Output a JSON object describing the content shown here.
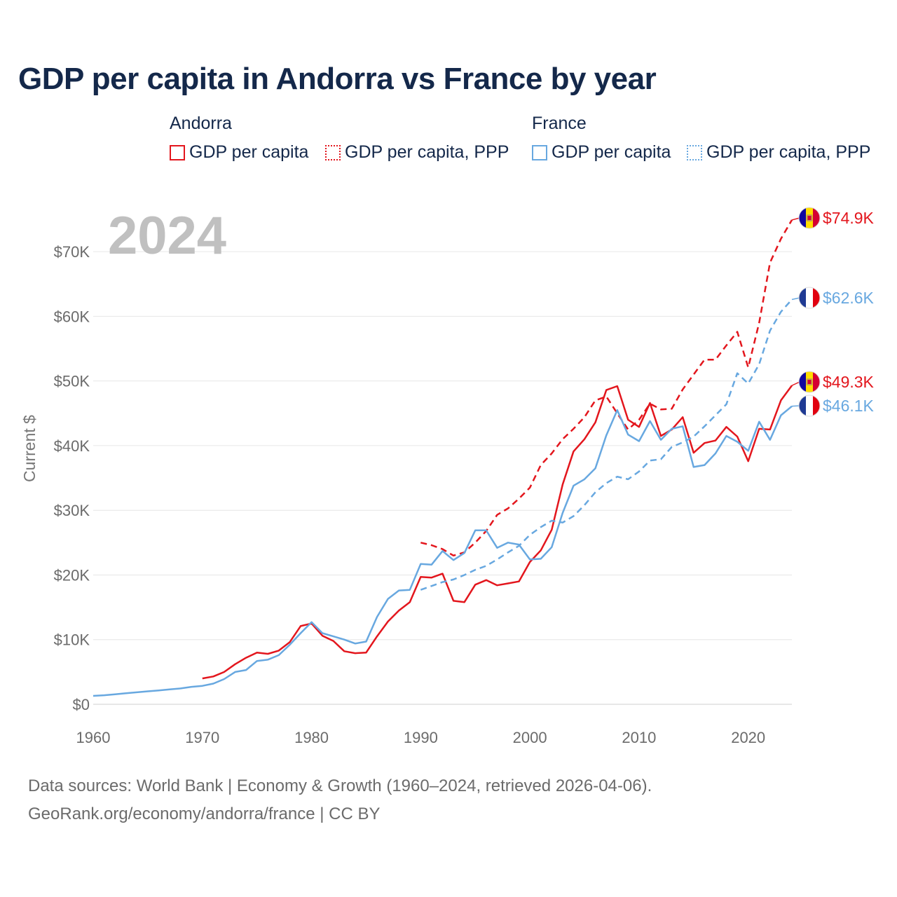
{
  "title": "GDP per capita in Andorra vs France by year",
  "legend": {
    "andorra": {
      "title": "Andorra",
      "items": [
        "GDP per capita",
        "GDP per capita, PPP"
      ]
    },
    "france": {
      "title": "France",
      "items": [
        "GDP per capita",
        "GDP per capita, PPP"
      ]
    }
  },
  "colors": {
    "andorra": "#e3161d",
    "france": "#68a8e0",
    "grid": "#e6e6e6"
  },
  "source": {
    "line1": "Data sources: World Bank | Economy & Growth (1960–2024, retrieved 2026-04-06).",
    "line2": "GeoRank.org/economy/andorra/france | CC BY"
  },
  "chart_data": {
    "type": "line",
    "year_watermark": "2024",
    "ylabel": "Current $",
    "xlim": [
      1960,
      2024
    ],
    "ylim": [
      0,
      75000
    ],
    "x_ticks": [
      1960,
      1970,
      1980,
      1990,
      2000,
      2010,
      2020
    ],
    "x_tick_labels": [
      "1960",
      "1970",
      "1980",
      "1990",
      "2000",
      "2010",
      "2020"
    ],
    "y_ticks": [
      0,
      10000,
      20000,
      30000,
      40000,
      50000,
      60000,
      70000
    ],
    "y_tick_labels": [
      "$0",
      "$10K",
      "$20K",
      "$30K",
      "$40K",
      "$50K",
      "$60K",
      "$70K"
    ],
    "end_labels": [
      {
        "text": "$74.9K",
        "series": "andorra_ppp",
        "value": 74900,
        "flag": "andorra-flag"
      },
      {
        "text": "$62.6K",
        "series": "france_ppp",
        "value": 62600,
        "flag": "france-flag"
      },
      {
        "text": "$49.3K",
        "series": "andorra_gdp",
        "value": 49300,
        "flag": "andorra-flag"
      },
      {
        "text": "$46.1K",
        "series": "france_gdp",
        "value": 46100,
        "flag": "france-flag"
      }
    ],
    "series": [
      {
        "key": "andorra_gdp",
        "name": "Andorra GDP per capita",
        "country": "andorra",
        "style": "solid",
        "x": [
          1970,
          1971,
          1972,
          1973,
          1974,
          1975,
          1976,
          1977,
          1978,
          1979,
          1980,
          1981,
          1982,
          1983,
          1984,
          1985,
          1986,
          1987,
          1988,
          1989,
          1990,
          1991,
          1992,
          1993,
          1994,
          1995,
          1996,
          1997,
          1998,
          1999,
          2000,
          2001,
          2002,
          2003,
          2004,
          2005,
          2006,
          2007,
          2008,
          2009,
          2010,
          2011,
          2012,
          2013,
          2014,
          2015,
          2016,
          2017,
          2018,
          2019,
          2020,
          2021,
          2022,
          2023,
          2024
        ],
        "values": [
          4000,
          4300,
          5000,
          6200,
          7200,
          8000,
          7800,
          8300,
          9600,
          12100,
          12500,
          10600,
          9800,
          8200,
          7900,
          8000,
          10500,
          12800,
          14500,
          15800,
          19700,
          19600,
          20200,
          16000,
          15800,
          18500,
          19200,
          18400,
          18700,
          19000,
          22000,
          23800,
          27000,
          34000,
          39100,
          41000,
          43600,
          48600,
          49200,
          44000,
          42900,
          46600,
          41500,
          42500,
          44400,
          38900,
          40400,
          40800,
          42900,
          41400,
          37600,
          42600,
          42500,
          47000,
          49300
        ]
      },
      {
        "key": "andorra_ppp",
        "name": "Andorra GDP per capita, PPP",
        "country": "andorra",
        "style": "dashed",
        "x": [
          1990,
          1991,
          1992,
          1993,
          1994,
          1995,
          1996,
          1997,
          1998,
          1999,
          2000,
          2001,
          2002,
          2003,
          2004,
          2005,
          2006,
          2007,
          2008,
          2009,
          2010,
          2011,
          2012,
          2013,
          2014,
          2015,
          2016,
          2017,
          2018,
          2019,
          2020,
          2021,
          2022,
          2023,
          2024
        ],
        "values": [
          25000,
          24600,
          24000,
          23000,
          23500,
          25000,
          26800,
          29300,
          30300,
          31800,
          33500,
          37000,
          38800,
          41000,
          42600,
          44400,
          47000,
          47600,
          45000,
          42500,
          44000,
          46500,
          45600,
          45700,
          48700,
          51000,
          53300,
          53300,
          55500,
          57600,
          52100,
          59000,
          68300,
          72000,
          74900
        ]
      },
      {
        "key": "france_gdp",
        "name": "France GDP per capita",
        "country": "france",
        "style": "solid",
        "x": [
          1960,
          1961,
          1962,
          1963,
          1964,
          1965,
          1966,
          1967,
          1968,
          1969,
          1970,
          1971,
          1972,
          1973,
          1974,
          1975,
          1976,
          1977,
          1978,
          1979,
          1980,
          1981,
          1982,
          1983,
          1984,
          1985,
          1986,
          1987,
          1988,
          1989,
          1990,
          1991,
          1992,
          1993,
          1994,
          1995,
          1996,
          1997,
          1998,
          1999,
          2000,
          2001,
          2002,
          2003,
          2004,
          2005,
          2006,
          2007,
          2008,
          2009,
          2010,
          2011,
          2012,
          2013,
          2014,
          2015,
          2016,
          2017,
          2018,
          2019,
          2020,
          2021,
          2022,
          2023,
          2024
        ],
        "values": [
          1300,
          1400,
          1550,
          1700,
          1850,
          2000,
          2150,
          2300,
          2450,
          2700,
          2850,
          3200,
          3900,
          5000,
          5300,
          6700,
          6900,
          7600,
          9200,
          11000,
          12700,
          11000,
          10500,
          10000,
          9400,
          9700,
          13500,
          16300,
          17600,
          17700,
          21700,
          21600,
          23700,
          22300,
          23400,
          26900,
          26900,
          24200,
          25000,
          24700,
          22400,
          22500,
          24300,
          29600,
          33800,
          34800,
          36500,
          41600,
          45500,
          41700,
          40700,
          43800,
          40900,
          42600,
          43000,
          36700,
          37000,
          38800,
          41500,
          40600,
          39200,
          43700,
          40900,
          44700,
          46100
        ]
      },
      {
        "key": "france_ppp",
        "name": "France GDP per capita, PPP",
        "country": "france",
        "style": "dashed",
        "x": [
          1990,
          1991,
          1992,
          1993,
          1994,
          1995,
          1996,
          1997,
          1998,
          1999,
          2000,
          2001,
          2002,
          2003,
          2004,
          2005,
          2006,
          2007,
          2008,
          2009,
          2010,
          2011,
          2012,
          2013,
          2014,
          2015,
          2016,
          2017,
          2018,
          2019,
          2020,
          2021,
          2022,
          2023,
          2024
        ],
        "values": [
          17700,
          18300,
          18900,
          19300,
          20000,
          20800,
          21400,
          22400,
          23500,
          24500,
          26200,
          27400,
          28400,
          28100,
          29100,
          30800,
          32800,
          34200,
          35200,
          34800,
          36000,
          37700,
          37900,
          39800,
          40500,
          41400,
          43000,
          44700,
          46400,
          51200,
          49600,
          52600,
          57800,
          60700,
          62600
        ]
      }
    ]
  }
}
